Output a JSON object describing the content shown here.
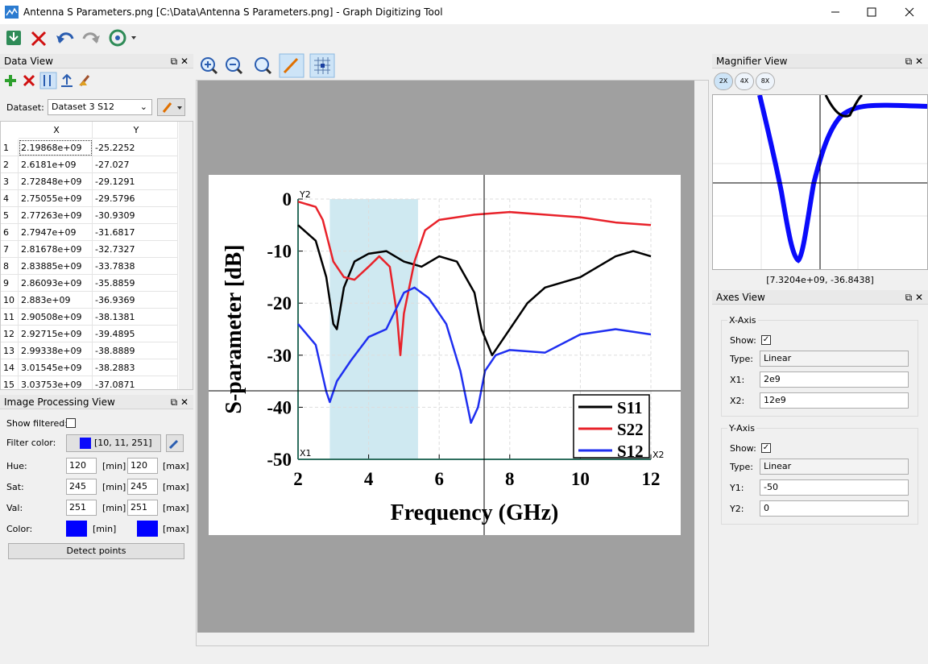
{
  "window": {
    "title": "Antenna S Parameters.png [C:\\Data\\Antenna S Parameters.png] - Graph Digitizing Tool"
  },
  "data_view": {
    "title": "Data View",
    "dataset_label": "Dataset:",
    "dataset": "Dataset 3 S12",
    "columns": [
      "X",
      "Y"
    ],
    "rows": [
      [
        "1",
        "2.19868e+09",
        "-25.2252"
      ],
      [
        "2",
        "2.6181e+09",
        "-27.027"
      ],
      [
        "3",
        "2.72848e+09",
        "-29.1291"
      ],
      [
        "4",
        "2.75055e+09",
        "-29.5796"
      ],
      [
        "5",
        "2.77263e+09",
        "-30.9309"
      ],
      [
        "6",
        "2.7947e+09",
        "-31.6817"
      ],
      [
        "7",
        "2.81678e+09",
        "-32.7327"
      ],
      [
        "8",
        "2.83885e+09",
        "-33.7838"
      ],
      [
        "9",
        "2.86093e+09",
        "-35.8859"
      ],
      [
        "10",
        "2.883e+09",
        "-36.9369"
      ],
      [
        "11",
        "2.90508e+09",
        "-38.1381"
      ],
      [
        "12",
        "2.92715e+09",
        "-39.4895"
      ],
      [
        "13",
        "2.99338e+09",
        "-38.8889"
      ],
      [
        "14",
        "3.01545e+09",
        "-38.2883"
      ],
      [
        "15",
        "3.03753e+09",
        "-37.0871"
      ]
    ]
  },
  "image_processing": {
    "title": "Image Processing View",
    "show_filtered": "Show filtered:",
    "filter_color_label": "Filter color:",
    "filter_color": "[10, 11, 251]",
    "hue": {
      "label": "Hue:",
      "min": "120",
      "max": "120",
      "min_tag": "[min]",
      "max_tag": "[max]"
    },
    "sat": {
      "label": "Sat:",
      "min": "245",
      "max": "245",
      "min_tag": "[min]",
      "max_tag": "[max]"
    },
    "val": {
      "label": "Val:",
      "min": "251",
      "max": "251",
      "min_tag": "[min]",
      "max_tag": "[max]"
    },
    "color": {
      "label": "Color:",
      "min_tag": "[min]",
      "max_tag": "[max]"
    },
    "detect": "Detect points"
  },
  "magnifier": {
    "title": "Magnifier View",
    "zoom": [
      "2X",
      "4X",
      "8X"
    ],
    "coords": "[7.3204e+09, -36.8438]"
  },
  "axes_view": {
    "title": "Axes View",
    "x_axis": {
      "title": "X-Axis",
      "show": "Show:",
      "type_label": "Type:",
      "type": "Linear",
      "first_label": "X1:",
      "first": "2e9",
      "second_label": "X2:",
      "second": "12e9"
    },
    "y_axis": {
      "title": "Y-Axis",
      "show": "Show:",
      "type_label": "Type:",
      "type": "Linear",
      "first_label": "Y1:",
      "first": "-50",
      "second_label": "Y2:",
      "second": "0"
    }
  },
  "chart_data": {
    "type": "line",
    "xlabel": "Frequency (GHz)",
    "ylabel": "S-parameter [dB]",
    "xlim": [
      2,
      12
    ],
    "ylim": [
      -50,
      0
    ],
    "xticks": [
      2,
      4,
      6,
      8,
      10,
      12
    ],
    "yticks": [
      -50,
      -40,
      -30,
      -20,
      -10,
      0
    ],
    "grid": true,
    "shaded_span": [
      2.9,
      5.4
    ],
    "calibration_labels": [
      "X1",
      "X2",
      "Y2"
    ],
    "legend": "lower right",
    "series": [
      {
        "name": "S11",
        "color": "#000000",
        "x": [
          2,
          2.5,
          2.8,
          3.0,
          3.1,
          3.3,
          3.6,
          4.0,
          4.5,
          5.0,
          5.5,
          6.0,
          6.5,
          7.0,
          7.2,
          7.5,
          7.8,
          8.5,
          9.0,
          10,
          11,
          11.5,
          12
        ],
        "values": [
          -5,
          -8,
          -15,
          -24,
          -25,
          -17,
          -12,
          -10.5,
          -10,
          -12,
          -13,
          -11,
          -12,
          -18,
          -25,
          -30,
          -27,
          -20,
          -17,
          -15,
          -11,
          -10,
          -11
        ]
      },
      {
        "name": "S22",
        "color": "#e8222a",
        "x": [
          2,
          2.5,
          2.7,
          3.0,
          3.3,
          3.6,
          4.0,
          4.3,
          4.6,
          4.8,
          4.9,
          5.0,
          5.3,
          5.6,
          6,
          7,
          8,
          9,
          10,
          11,
          12
        ],
        "values": [
          -0.5,
          -1.5,
          -4,
          -12,
          -15,
          -15.5,
          -13,
          -11,
          -13,
          -22,
          -30,
          -22,
          -12,
          -6,
          -4,
          -3,
          -2.5,
          -3,
          -3.5,
          -4.5,
          -5
        ]
      },
      {
        "name": "S12",
        "color": "#1f2ff0",
        "x": [
          2,
          2.5,
          2.8,
          2.9,
          3.1,
          3.5,
          4,
          4.5,
          5.0,
          5.3,
          5.7,
          6.2,
          6.6,
          6.9,
          7.1,
          7.3,
          7.6,
          8,
          9,
          10,
          11,
          12
        ],
        "values": [
          -24,
          -28,
          -37,
          -39,
          -35,
          -31,
          -26.5,
          -25,
          -18,
          -17,
          -19,
          -24,
          -33,
          -43,
          -40,
          -33,
          -30,
          -29,
          -29.5,
          -26,
          -25,
          -26
        ]
      }
    ]
  }
}
